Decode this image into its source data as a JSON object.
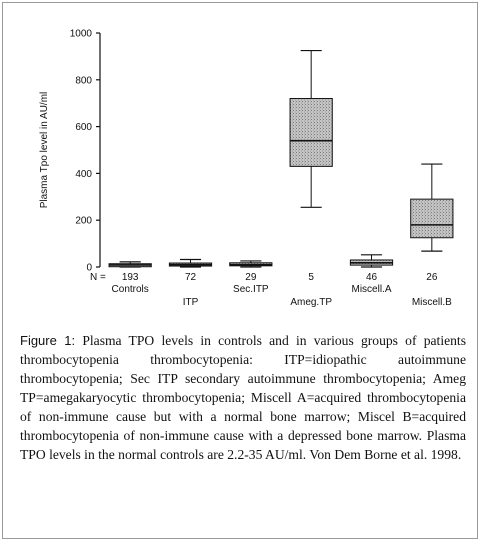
{
  "chart_data": {
    "type": "box",
    "ylabel": "Plasma Tpo level in AU/ml",
    "ylim": [
      0,
      1000
    ],
    "yticks": [
      0,
      200,
      400,
      600,
      800,
      1000
    ],
    "n_prefix": "N =",
    "grid": false,
    "box_fill": "#bcbcbc",
    "groups": [
      {
        "label": "Controls",
        "n": "193",
        "whisker_low": 0,
        "q1": 4,
        "median": 9,
        "q3": 14,
        "whisker_high": 22
      },
      {
        "label": "ITP",
        "n": "72",
        "whisker_low": 0,
        "q1": 4,
        "median": 10,
        "q3": 17,
        "whisker_high": 32
      },
      {
        "label": "Sec.ITP",
        "n": "29",
        "whisker_low": 0,
        "q1": 5,
        "median": 10,
        "q3": 18,
        "whisker_high": 26
      },
      {
        "label": "Ameg.TP",
        "n": "5",
        "whisker_low": 255,
        "q1": 430,
        "median": 540,
        "q3": 720,
        "whisker_high": 925
      },
      {
        "label": "Miscell.A",
        "n": "46",
        "whisker_low": 0,
        "q1": 8,
        "median": 18,
        "q3": 30,
        "whisker_high": 52
      },
      {
        "label": "Miscell.B",
        "n": "26",
        "whisker_low": 68,
        "q1": 125,
        "median": 180,
        "q3": 290,
        "whisker_high": 440
      }
    ]
  },
  "caption": {
    "label": "Figure 1:",
    "text": "Plasma TPO levels in controls and in various groups of patients thrombocytopenia thrombocytopenia: ITP=idiopathic autoimmune thrombocytopenia; Sec ITP secondary autoimmune thrombocytopenia; Ameg TP=amegakaryocytic thrombocytopenia; Miscell A=acquired thrombocytopenia of non-immune cause but with a normal bone marrow; Miscel B=acquired thrombocytopenia of non-immune cause with a depressed bone marrow. Plasma TPO levels in the normal controls are 2.2-35 AU/ml. Von Dem Borne et al. 1998."
  }
}
